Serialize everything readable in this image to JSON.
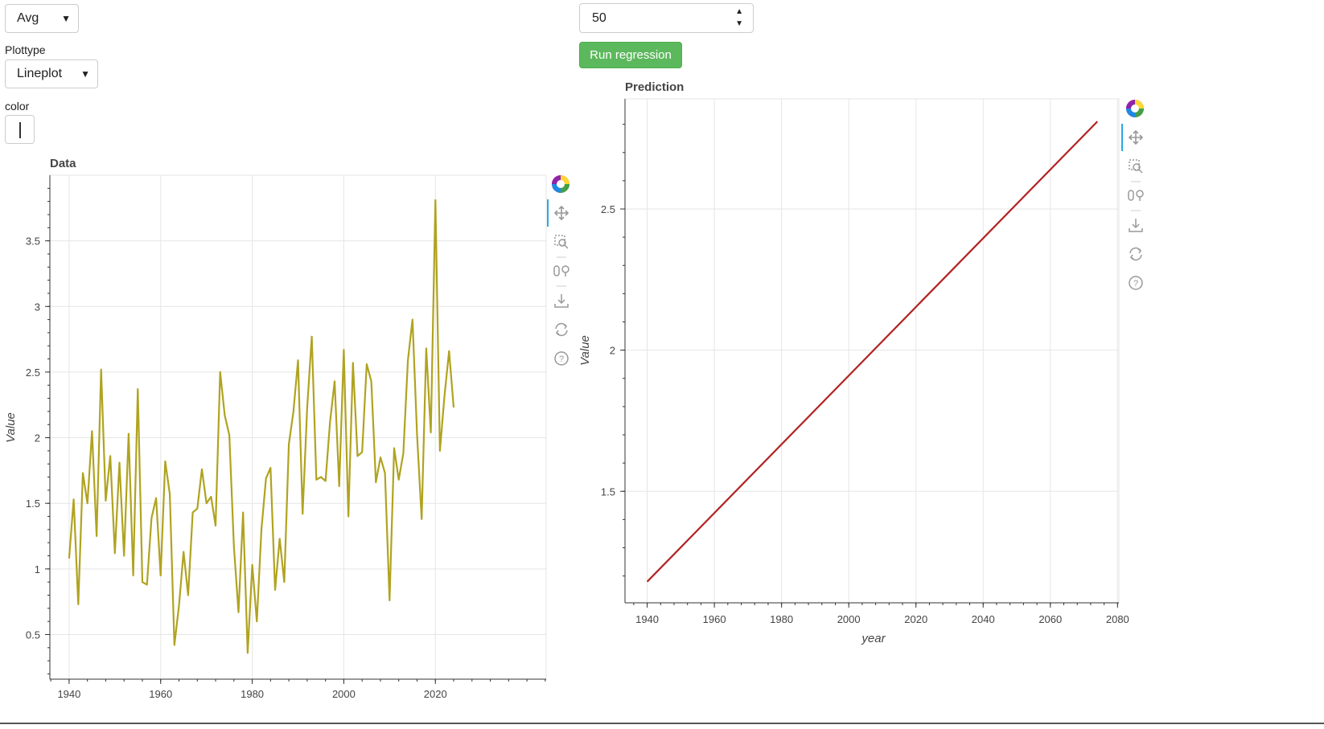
{
  "controls": {
    "agg_select": {
      "value": "Avg"
    },
    "plottype": {
      "label": "Plottype",
      "value": "Lineplot"
    },
    "color": {
      "label": "color"
    },
    "years_input": {
      "value": "50"
    },
    "run_button": {
      "label": "Run regression"
    }
  },
  "chart_data": [
    {
      "type": "line",
      "title": "Data",
      "xlabel": "",
      "ylabel": "Value",
      "xlim": [
        1935.8,
        2044.2
      ],
      "ylim": [
        0.16,
        4.0
      ],
      "xticks": [
        "1940",
        "1960",
        "1980",
        "2000",
        "2020"
      ],
      "yticks": [
        "0.5",
        "1",
        "1.5",
        "2",
        "2.5",
        "3",
        "3.5"
      ],
      "line_color": "#b0a320",
      "series": [
        {
          "x": [
            1940,
            1941,
            1942,
            1943,
            1944,
            1945,
            1946,
            1947,
            1948,
            1949,
            1950,
            1951,
            1952,
            1953,
            1954,
            1955,
            1956,
            1957,
            1958,
            1959,
            1960,
            1961,
            1962,
            1963,
            1964,
            1965,
            1966,
            1967,
            1968,
            1969,
            1970,
            1971,
            1972,
            1973,
            1974,
            1975,
            1976,
            1977,
            1978,
            1979,
            1980,
            1981,
            1982,
            1983,
            1984,
            1985,
            1986,
            1987,
            1988,
            1989,
            1990,
            1991,
            1992,
            1993,
            1994,
            1995,
            1996,
            1997,
            1998,
            1999,
            2000,
            2001,
            2002,
            2003,
            2004,
            2005,
            2006,
            2007,
            2008,
            2009,
            2010,
            2011,
            2012,
            2013,
            2014,
            2015,
            2016,
            2017,
            2018,
            2019,
            2020,
            2021,
            2022,
            2023,
            2024
          ],
          "y": [
            1.08,
            1.53,
            0.73,
            1.73,
            1.5,
            2.05,
            1.25,
            2.52,
            1.52,
            1.86,
            1.12,
            1.81,
            1.1,
            2.03,
            0.95,
            2.37,
            0.9,
            0.88,
            1.39,
            1.54,
            0.95,
            1.82,
            1.57,
            0.42,
            0.72,
            1.13,
            0.8,
            1.43,
            1.46,
            1.76,
            1.5,
            1.55,
            1.33,
            2.5,
            2.17,
            2.02,
            1.17,
            0.67,
            1.43,
            0.36,
            1.03,
            0.6,
            1.3,
            1.69,
            1.77,
            0.84,
            1.23,
            0.9,
            1.95,
            2.2,
            2.59,
            1.42,
            2.23,
            2.77,
            1.68,
            1.7,
            1.67,
            2.12,
            2.43,
            1.63,
            2.67,
            1.4,
            2.57,
            1.86,
            1.89,
            2.56,
            2.43,
            1.66,
            1.85,
            1.73,
            0.76,
            1.92,
            1.68,
            1.88,
            2.59,
            2.9,
            2.02,
            1.38,
            2.68,
            2.04,
            3.81,
            1.9,
            2.32,
            2.66,
            2.23
          ]
        }
      ]
    },
    {
      "type": "line",
      "title": "Prediction",
      "xlabel": "year",
      "ylabel": "Value",
      "xlim": [
        1933.4,
        2080.4
      ],
      "ylim": [
        1.105,
        2.89
      ],
      "xticks": [
        "1940",
        "1960",
        "1980",
        "2000",
        "2020",
        "2040",
        "2060",
        "2080"
      ],
      "yticks": [
        "1.5",
        "2",
        "2.5"
      ],
      "line_color": "#b22222",
      "series": [
        {
          "x": [
            1940,
            2074
          ],
          "y": [
            1.18,
            2.81
          ]
        }
      ]
    }
  ]
}
